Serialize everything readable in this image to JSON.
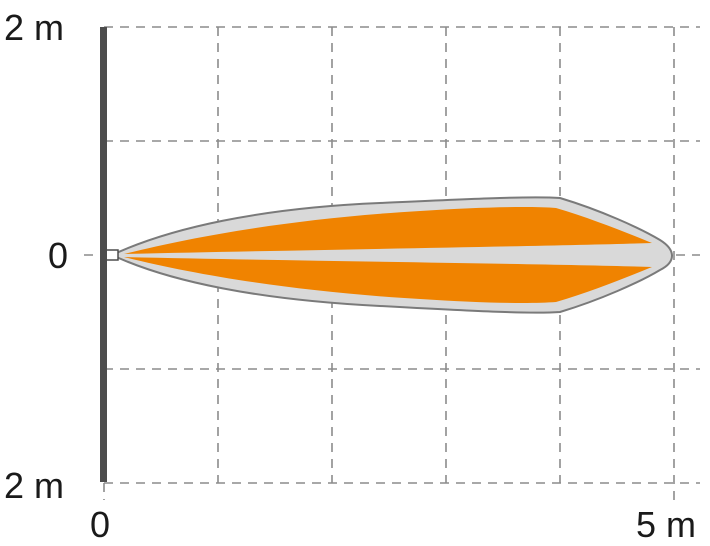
{
  "diagram": {
    "y_axis": {
      "top_label": "2 m",
      "middle_label": "0",
      "bottom_label": "2 m"
    },
    "x_axis": {
      "left_label": "0",
      "right_label": "5 m"
    },
    "colors": {
      "detection_zone": "#f08300",
      "outer_zone": "#d9d9d9",
      "outline": "#7a7a7a",
      "axis": "#4d4d4d",
      "grid": "#8c8c8c"
    }
  }
}
